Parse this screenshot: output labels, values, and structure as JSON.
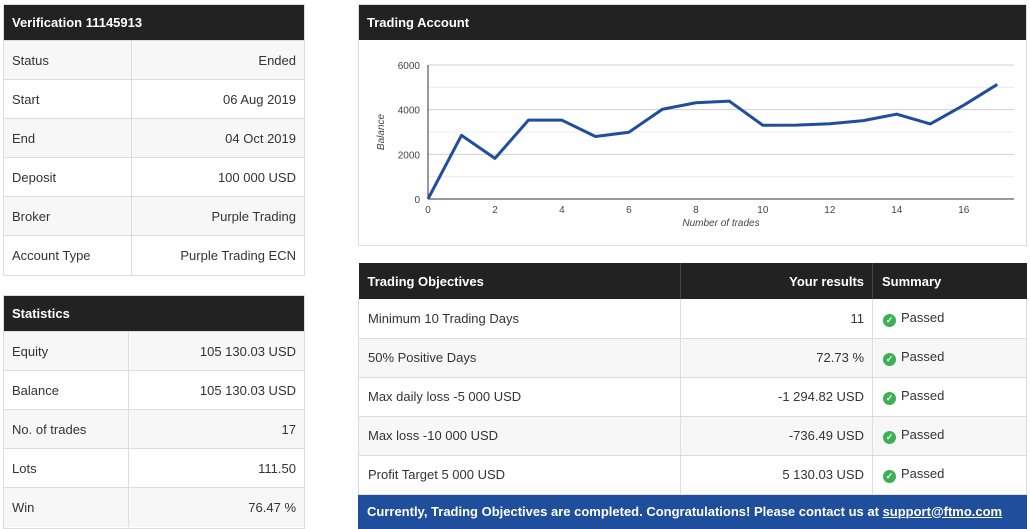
{
  "verification": {
    "title": "Verification 11145913",
    "rows": [
      {
        "label": "Status",
        "value": "Ended"
      },
      {
        "label": "Start",
        "value": "06 Aug 2019"
      },
      {
        "label": "End",
        "value": "04 Oct 2019"
      },
      {
        "label": "Deposit",
        "value": "100 000 USD"
      },
      {
        "label": "Broker",
        "value": "Purple Trading"
      },
      {
        "label": "Account Type",
        "value": "Purple Trading ECN"
      }
    ]
  },
  "statistics": {
    "title": "Statistics",
    "rows": [
      {
        "label": "Equity",
        "value": "105 130.03 USD"
      },
      {
        "label": "Balance",
        "value": "105 130.03 USD"
      },
      {
        "label": "No. of trades",
        "value": "17"
      },
      {
        "label": "Lots",
        "value": "111.50"
      },
      {
        "label": "Win",
        "value": "76.47 %"
      }
    ]
  },
  "trading_account": {
    "title": "Trading Account"
  },
  "chart_data": {
    "type": "line",
    "title": "",
    "xlabel": "Number of trades",
    "ylabel": "Balance",
    "x": [
      0,
      1,
      2,
      3,
      4,
      5,
      6,
      7,
      8,
      9,
      10,
      11,
      12,
      13,
      14,
      15,
      16,
      17
    ],
    "series": [
      {
        "values": [
          0,
          2850,
          1820,
          3530,
          3530,
          2800,
          2990,
          4020,
          4310,
          4380,
          3300,
          3310,
          3370,
          3510,
          3800,
          3360,
          4200,
          5130
        ]
      }
    ],
    "xlim": [
      0,
      17.5
    ],
    "ylim": [
      0,
      6000
    ],
    "x_ticks": [
      0,
      2,
      4,
      6,
      8,
      10,
      12,
      14,
      16
    ],
    "y_ticks": [
      0,
      2000,
      4000,
      6000
    ],
    "grid": true,
    "line_color": "#1f4e9c"
  },
  "objectives": {
    "headers": {
      "name": "Trading Objectives",
      "result": "Your results",
      "summary": "Summary"
    },
    "rows": [
      {
        "name": "Minimum 10 Trading Days",
        "result": "11",
        "summary": "Passed"
      },
      {
        "name": "50% Positive Days",
        "result": "72.73 %",
        "summary": "Passed"
      },
      {
        "name": "Max daily loss -5 000 USD",
        "result": "-1 294.82 USD",
        "summary": "Passed"
      },
      {
        "name": "Max loss -10 000 USD",
        "result": "-736.49 USD",
        "summary": "Passed"
      },
      {
        "name": "Profit Target 5 000 USD",
        "result": "5 130.03 USD",
        "summary": "Passed"
      }
    ],
    "banner_text": "Currently, Trading Objectives are completed. Congratulations! Please contact us at ",
    "banner_link": "support@ftmo.com"
  },
  "colors": {
    "header": "#222222",
    "banner": "#1f4e9c",
    "passed": "#3cb054"
  }
}
